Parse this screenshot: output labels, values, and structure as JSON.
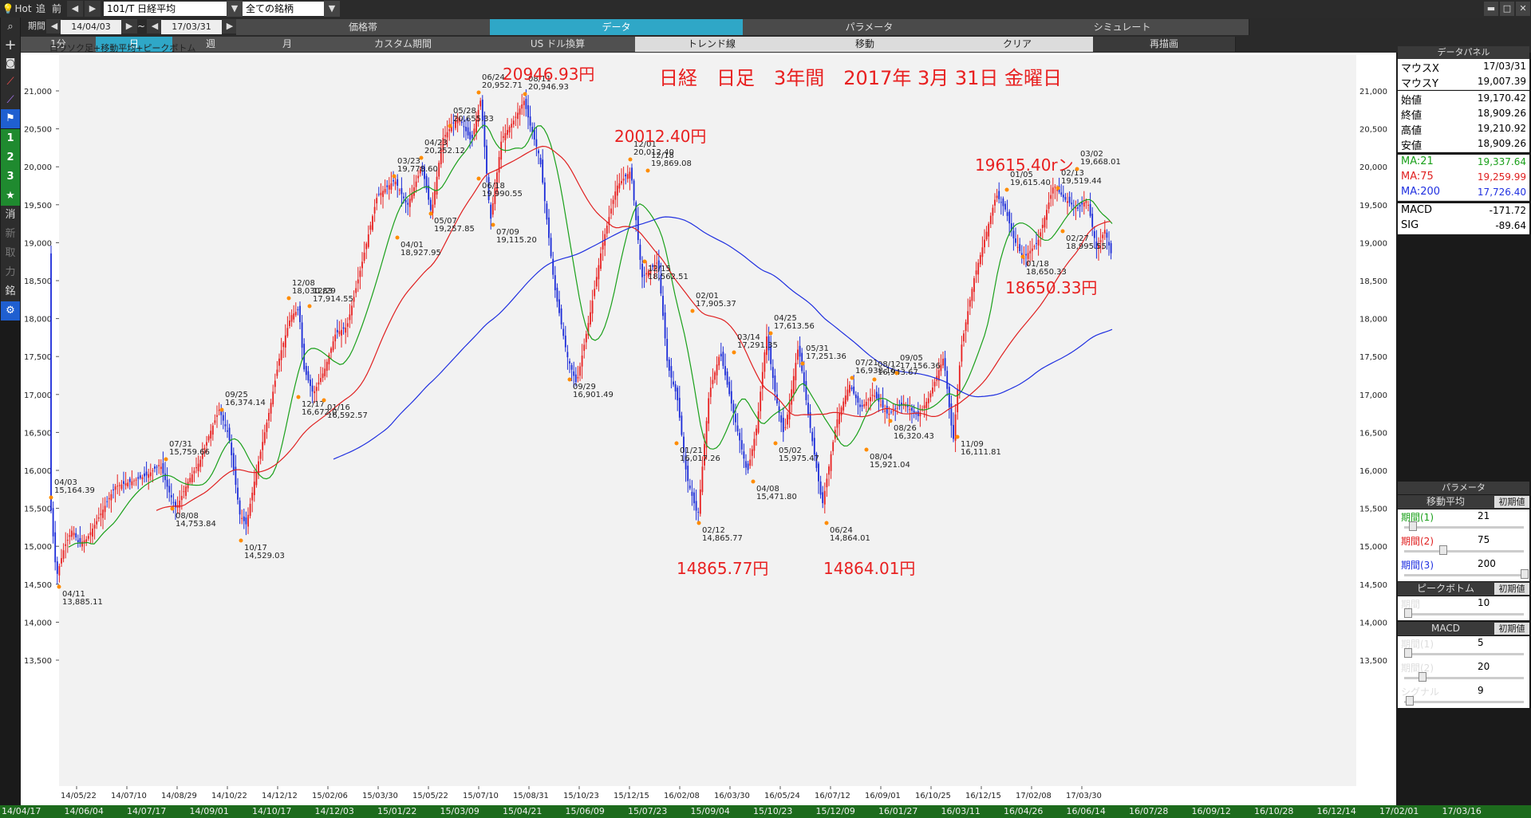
{
  "toolbar": {
    "hot": "Hot",
    "tsui": "追",
    "mae": "前",
    "prev": "◀",
    "next": "▶",
    "symbol": "101/T 日経平均",
    "universe": "全ての銘柄"
  },
  "row2": {
    "period_label": "期間",
    "start": "14/04/03",
    "tilde": "~",
    "end": "17/03/31",
    "tabs": [
      "価格帯",
      "データ",
      "パラメータ",
      "シミュレート"
    ]
  },
  "row3": {
    "tabs": [
      "1分",
      "日",
      "週",
      "月",
      "カスタム期間",
      "US ドル換算",
      "トレンド線",
      "移動",
      "クリア",
      "再描画"
    ]
  },
  "lefttools": {
    "n1": "1",
    "n2": "2",
    "n3": "3",
    "k1": "消",
    "k2": "新",
    "k3": "取",
    "k4": "力",
    "k5": "銘"
  },
  "chart": {
    "caption": "ロウソク足+移動平均+ピークボトム",
    "title": "日経　日足　3年間　2017年 3月 31日  金曜日",
    "annotations": [
      "20946.93円",
      "20012.40円",
      "19615.40rン",
      "18650.33円",
      "14865.77円",
      "14864.01円"
    ],
    "y_ticks": [
      "21,000",
      "20,500",
      "20,000",
      "19,500",
      "19,000",
      "18,500",
      "18,000",
      "17,500",
      "17,000",
      "16,500",
      "16,000",
      "15,500",
      "15,000",
      "14,500",
      "14,000",
      "13,500"
    ],
    "x_ticks": [
      "14/05/22",
      "14/07/10",
      "14/08/29",
      "14/10/22",
      "14/12/12",
      "15/02/06",
      "15/03/30",
      "15/05/22",
      "15/07/10",
      "15/08/31",
      "15/10/23",
      "15/12/15",
      "16/02/08",
      "16/03/30",
      "16/05/24",
      "16/07/12",
      "16/09/01",
      "16/10/25",
      "16/12/15",
      "17/02/08",
      "17/03/30"
    ],
    "peaks": [
      {
        "d": "04/03",
        "v": "15,164.39"
      },
      {
        "d": "04/11",
        "v": "13,885.11"
      },
      {
        "d": "07/31",
        "v": "15,759.66"
      },
      {
        "d": "08/08",
        "v": "14,753.84"
      },
      {
        "d": "09/25",
        "v": "16,374.14"
      },
      {
        "d": "10/17",
        "v": "14,529.03"
      },
      {
        "d": "12/08",
        "v": "18,030.83"
      },
      {
        "d": "12/29",
        "v": "17,914.55"
      },
      {
        "d": "12/17",
        "v": "16,672.0"
      },
      {
        "d": "01/16",
        "v": "16,592.57"
      },
      {
        "d": "03/23",
        "v": "19,778.60"
      },
      {
        "d": "04/01",
        "v": "18,927.95"
      },
      {
        "d": "04/23",
        "v": "20,252.12"
      },
      {
        "d": "05/07",
        "v": "19,257.85"
      },
      {
        "d": "05/28",
        "v": "20,655.33"
      },
      {
        "d": "06/24",
        "v": "20,952.71"
      },
      {
        "d": "06/18",
        "v": "19,990.55"
      },
      {
        "d": "07/09",
        "v": "19,115.20"
      },
      {
        "d": "08/11",
        "v": "20,946.93"
      },
      {
        "d": "09/29",
        "v": "16,901.49"
      },
      {
        "d": "12/01",
        "v": "20,012.40"
      },
      {
        "d": "12/18",
        "v": "19,869.08"
      },
      {
        "d": "12/15",
        "v": "18,562.51"
      },
      {
        "d": "02/01",
        "v": "17,905.37"
      },
      {
        "d": "01/21",
        "v": "16,017.26"
      },
      {
        "d": "02/12",
        "v": "14,865.77"
      },
      {
        "d": "03/14",
        "v": "17,291.35"
      },
      {
        "d": "04/08",
        "v": "15,471.80"
      },
      {
        "d": "04/25",
        "v": "17,613.56"
      },
      {
        "d": "05/02",
        "v": "15,975.47"
      },
      {
        "d": "05/31",
        "v": "17,251.36"
      },
      {
        "d": "06/24",
        "v": "14,864.01"
      },
      {
        "d": "07/21",
        "v": "16,938.16"
      },
      {
        "d": "08/12",
        "v": "16,943.67"
      },
      {
        "d": "08/04",
        "v": "15,921.04"
      },
      {
        "d": "09/05",
        "v": "17,156.36"
      },
      {
        "d": "08/26",
        "v": "16,320.43"
      },
      {
        "d": "11/09",
        "v": "16,111.81"
      },
      {
        "d": "01/05",
        "v": "19,615.40"
      },
      {
        "d": "01/18",
        "v": "18,650.33"
      },
      {
        "d": "02/13",
        "v": "19,519.44"
      },
      {
        "d": "03/02",
        "v": "19,668.01"
      },
      {
        "d": "02/27",
        "v": "18,995.55"
      }
    ]
  },
  "data_panel": {
    "title": "データパネル",
    "rows": [
      {
        "k": "マウスX",
        "v": "17/03/31"
      },
      {
        "k": "マウスY",
        "v": "19,007.39"
      },
      {
        "k": "始値",
        "v": "19,170.42"
      },
      {
        "k": "終値",
        "v": "18,909.26"
      },
      {
        "k": "高値",
        "v": "19,210.92"
      },
      {
        "k": "安値",
        "v": "18,909.26"
      },
      {
        "k": "MA:21",
        "v": "19,337.64"
      },
      {
        "k": "MA:75",
        "v": "19,259.99"
      },
      {
        "k": "MA:200",
        "v": "17,726.40"
      },
      {
        "k": "MACD",
        "v": "-171.72"
      },
      {
        "k": "SIG",
        "v": "-89.64"
      }
    ]
  },
  "params": {
    "title": "パラメータ",
    "reset": "初期値",
    "ma_title": "移動平均",
    "p1": "期間(1)",
    "p1v": "21",
    "p2": "期間(2)",
    "p2v": "75",
    "p3": "期間(3)",
    "p3v": "200",
    "pb_title": "ピークボトム",
    "pb": "期間",
    "pbv": "10",
    "macd_title": "MACD",
    "m1": "期間(1)",
    "m1v": "5",
    "m2": "期間(2)",
    "m2v": "20",
    "sig": "シグナル",
    "sigv": "9"
  },
  "date_strip": [
    "14/04/17",
    "14/06/04",
    "14/07/17",
    "14/09/01",
    "14/10/17",
    "14/12/03",
    "15/01/22",
    "15/03/09",
    "15/04/21",
    "15/06/09",
    "15/07/23",
    "15/09/04",
    "15/10/23",
    "15/12/09",
    "16/01/27",
    "16/03/11",
    "16/04/26",
    "16/06/14",
    "16/07/28",
    "16/09/12",
    "16/10/28",
    "16/12/14",
    "17/02/01",
    "17/03/16"
  ],
  "colors": {
    "ma21": "#1aa01a",
    "ma75": "#e02020",
    "ma200": "#2030e0",
    "up": "#e82020",
    "down": "#1a2ad8",
    "accent": "#2fa7c7"
  }
}
